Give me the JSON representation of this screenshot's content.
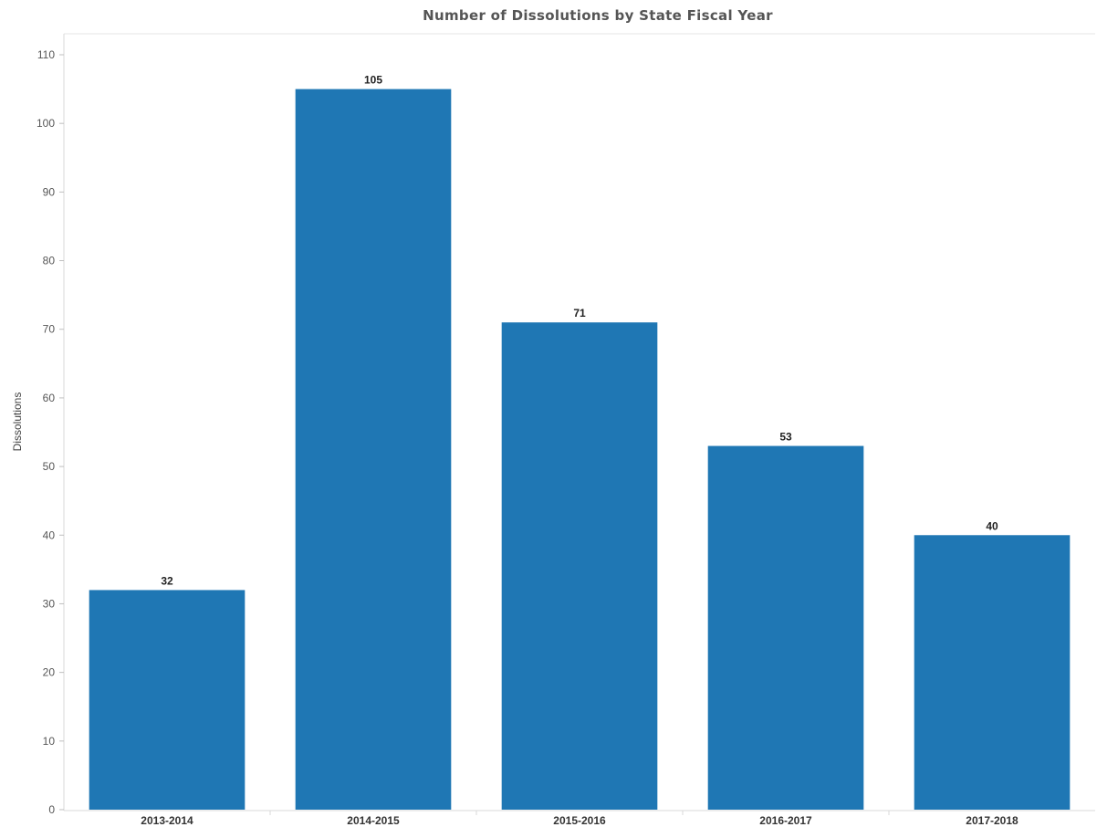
{
  "chart_data": {
    "type": "bar",
    "title": "Number of Dissolutions by State Fiscal Year",
    "xlabel": "",
    "ylabel": "Dissolutions",
    "categories": [
      "2013-2014",
      "2014-2015",
      "2015-2016",
      "2016-2017",
      "2017-2018"
    ],
    "values": [
      32,
      105,
      71,
      53,
      40
    ],
    "data_labels": [
      "32",
      "105",
      "71",
      "53",
      "40"
    ],
    "ylim": [
      0,
      110
    ],
    "yticks": [
      0,
      10,
      20,
      30,
      40,
      50,
      60,
      70,
      80,
      90,
      100,
      110
    ],
    "bar_color": "#1f77b4",
    "grid": false,
    "legend": "none"
  }
}
